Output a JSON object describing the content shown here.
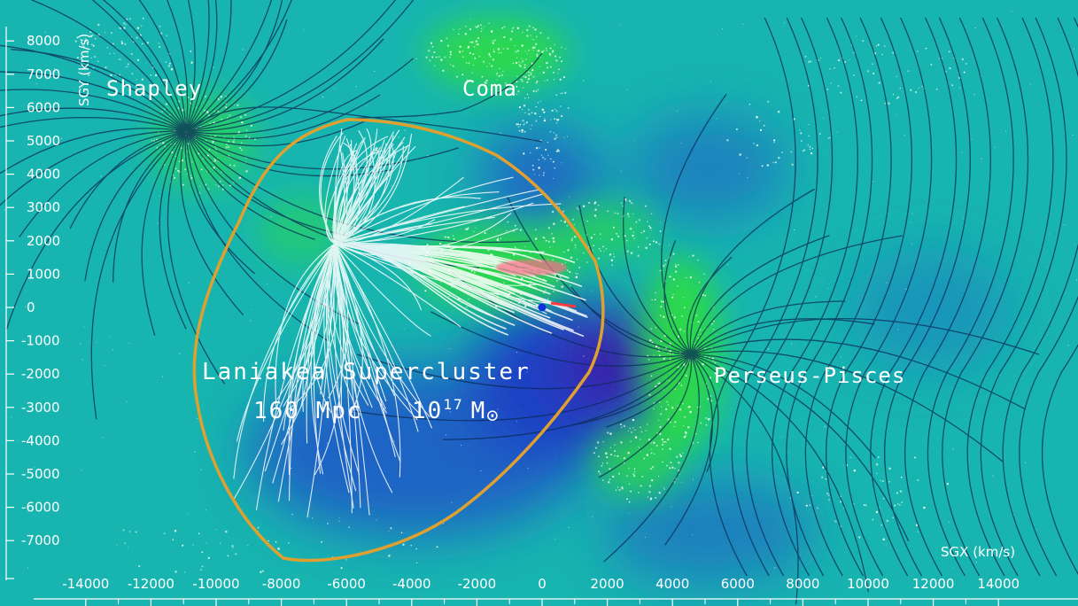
{
  "axes": {
    "x_title": "SGX (km/s)",
    "y_title": "SGY (km/s)",
    "x_ticks": [
      "-14000",
      "-12000",
      "-10000",
      "-8000",
      "-6000",
      "-4000",
      "-2000",
      "0",
      "2000",
      "4000",
      "6000",
      "8000",
      "10000",
      "12000",
      "14000"
    ],
    "y_ticks": [
      "8000",
      "7000",
      "6000",
      "5000",
      "4000",
      "3000",
      "2000",
      "1000",
      "0",
      "-1000",
      "-2000",
      "-3000",
      "-4000",
      "-5000",
      "-6000",
      "-7000"
    ]
  },
  "labels": {
    "shapley": "Shapley",
    "coma": "Coma",
    "perseus_pisces": "Perseus-Pisces",
    "supercluster_name": "Laniakea Supercluster",
    "supercluster_size": "160 Mpc",
    "mass_base": "10",
    "mass_exp": "17",
    "mass_unit": "M",
    "sun_symbol": "⊙"
  },
  "colors": {
    "background": "#18b5b0",
    "void": "#1a3fc4",
    "deep_void": "#3a1aa8",
    "dense": "#2fe03a",
    "boundary": "#e0a030",
    "flow_outer": "#0b2a55",
    "flow_inner": "#ffffff",
    "milky_way": "#1030e0",
    "attractor_red": "#ff3a3a"
  }
}
